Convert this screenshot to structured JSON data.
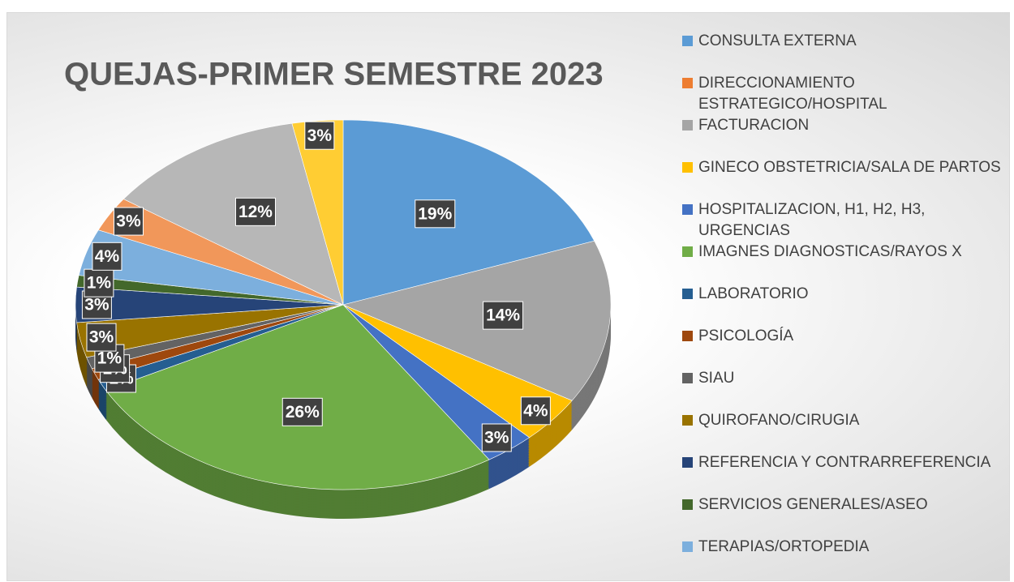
{
  "chart_data": {
    "type": "pie",
    "title": "QUEJAS-PRIMER SEMESTRE 2023",
    "categories": [
      "CONSULTA EXTERNA",
      "DIRECCIONAMIENTO ESTRATEGICO/HOSPITAL",
      "FACTURACION",
      "GINECO OBSTETRICIA/SALA DE PARTOS",
      "HOSPITALIZACION, H1, H2, H3, URGENCIAS",
      "IMAGNES DIAGNOSTICAS/RAYOS X",
      "LABORATORIO",
      "PSICOLOGÍA",
      "SIAU",
      "QUIROFANO/CIRUGIA",
      "REFERENCIA Y CONTRARREFERENCIA",
      "SERVICIOS GENERALES/ASEO",
      "TERAPIAS/ORTOPEDIA",
      null,
      null,
      null
    ],
    "values": [
      19,
      0,
      14,
      4,
      3,
      26,
      1,
      1,
      1,
      3,
      3,
      1,
      4,
      3,
      12,
      3
    ],
    "value_labels": [
      "19%",
      null,
      "14%",
      "4%",
      "3%",
      "26%",
      "1%",
      "1%",
      "1%",
      "3%",
      "3%",
      "1%",
      "4%",
      "3%",
      "12%",
      "3%"
    ],
    "colors": [
      "#5b9bd5",
      "#ed7d31",
      "#a5a5a5",
      "#ffc000",
      "#4472c4",
      "#70ad47",
      "#255e91",
      "#9e480e",
      "#636363",
      "#997300",
      "#264478",
      "#43682b",
      "#7cafdd",
      "#f1975a",
      "#b7b7b7",
      "#ffcd33"
    ]
  }
}
